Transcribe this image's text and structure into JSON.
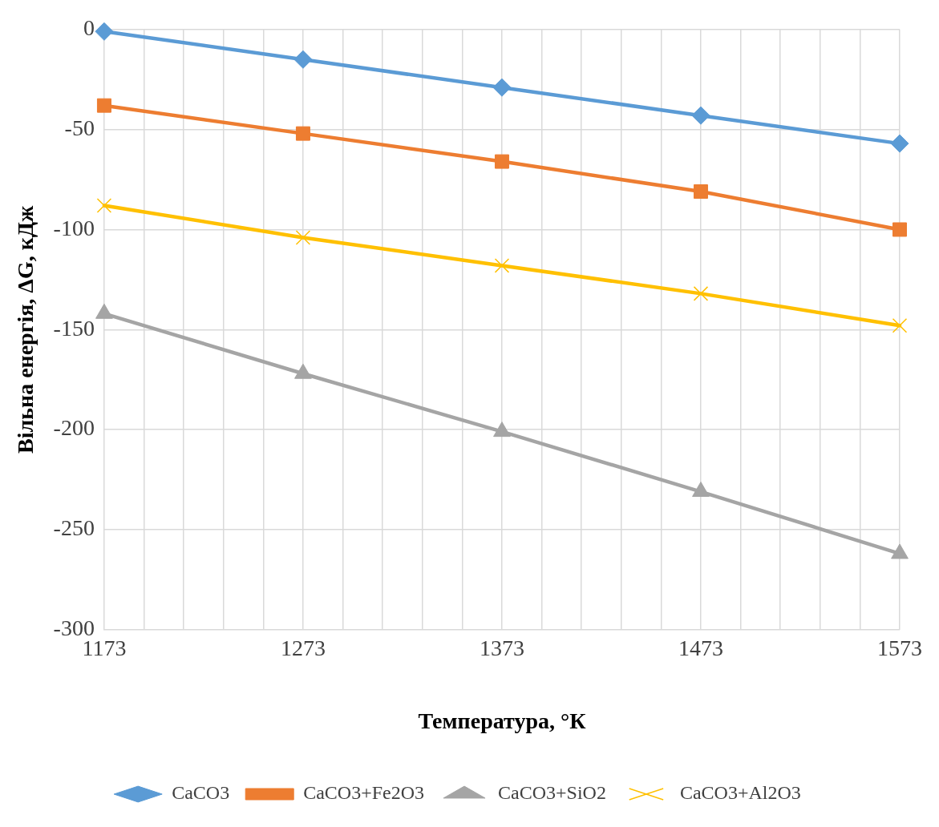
{
  "chart_data": {
    "type": "line",
    "xlabel": "Температура, °К",
    "ylabel": "Вільна енергія, ΔG, кДж",
    "x": [
      1173,
      1273,
      1373,
      1473,
      1573
    ],
    "series": [
      {
        "name": "CaCO3",
        "color": "#5b9bd5",
        "marker": "diamond",
        "values": [
          -1,
          -15,
          -29,
          -43,
          -57
        ]
      },
      {
        "name": "CaCO3+Fe2O3",
        "color": "#ed7d31",
        "marker": "square",
        "values": [
          -38,
          -52,
          -66,
          -81,
          -100
        ]
      },
      {
        "name": "CaCO3+SiO2",
        "color": "#a5a5a5",
        "marker": "triangle",
        "values": [
          -142,
          -172,
          -201,
          -231,
          -262
        ]
      },
      {
        "name": "CaCO3+Al2O3",
        "color": "#ffc000",
        "marker": "cross",
        "values": [
          -88,
          -104,
          -118,
          -132,
          -148
        ]
      }
    ],
    "xlim": [
      1173,
      1573
    ],
    "xticks": [
      1173,
      {
        "value": 1193,
        "label": null
      },
      {
        "value": 1213,
        "label": null
      },
      {
        "value": 1233,
        "label": null
      },
      {
        "value": 1253,
        "label": null
      },
      1273,
      {
        "value": 1293,
        "label": null
      },
      {
        "value": 1313,
        "label": null
      },
      {
        "value": 1333,
        "label": null
      },
      {
        "value": 1353,
        "label": null
      },
      1373,
      {
        "value": 1393,
        "label": null
      },
      {
        "value": 1413,
        "label": null
      },
      {
        "value": 1433,
        "label": null
      },
      {
        "value": 1453,
        "label": null
      },
      1473,
      {
        "value": 1493,
        "label": null
      },
      {
        "value": 1513,
        "label": null
      },
      {
        "value": 1533,
        "label": null
      },
      {
        "value": 1553,
        "label": null
      },
      1573
    ],
    "ylim": [
      -300,
      0
    ],
    "yticks": [
      -300,
      -250,
      -200,
      -150,
      -100,
      -50,
      0
    ],
    "grid": true,
    "legend": "bottom",
    "line_style": "solid"
  }
}
